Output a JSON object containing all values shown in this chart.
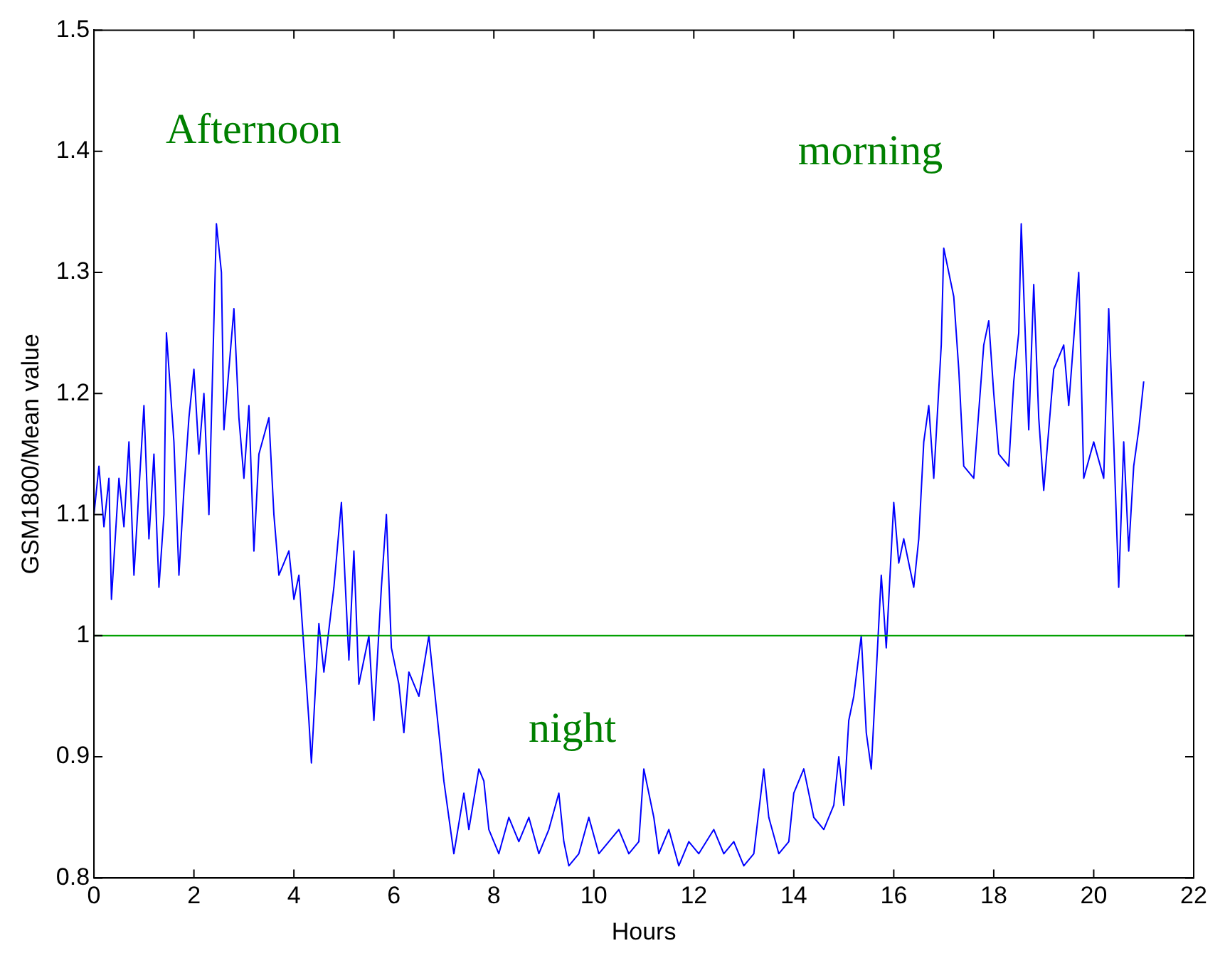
{
  "chart_data": {
    "type": "line",
    "xlabel": "Hours",
    "ylabel": "GSM1800/Mean value",
    "xlim": [
      0,
      22
    ],
    "xticks": [
      0,
      2,
      4,
      6,
      8,
      10,
      12,
      14,
      16,
      18,
      20,
      22
    ],
    "ylim": [
      0.8,
      1.5
    ],
    "yticks": [
      0.8,
      0.9,
      1,
      1.1,
      1.2,
      1.3,
      1.4,
      1.5
    ],
    "grid": false,
    "legend": false,
    "marker": "none",
    "line_style": "solid",
    "ref_lines": [
      {
        "axis": "y",
        "value": 1,
        "color": "#00a000"
      }
    ],
    "annotations": [
      "Afternoon",
      "morning",
      "night"
    ],
    "series": [
      {
        "color": "#0000ff",
        "x": [
          0,
          0.1,
          0.2,
          0.3,
          0.35,
          0.5,
          0.6,
          0.7,
          0.8,
          0.9,
          1.0,
          1.1,
          1.2,
          1.3,
          1.4,
          1.45,
          1.6,
          1.7,
          1.8,
          1.9,
          2.0,
          2.1,
          2.2,
          2.3,
          2.4,
          2.45,
          2.55,
          2.6,
          2.7,
          2.8,
          2.9,
          3.0,
          3.1,
          3.2,
          3.3,
          3.5,
          3.6,
          3.7,
          3.9,
          4.0,
          4.1,
          4.2,
          4.3,
          4.35,
          4.5,
          4.6,
          4.8,
          4.95,
          5.1,
          5.2,
          5.3,
          5.5,
          5.6,
          5.75,
          5.85,
          5.95,
          6.1,
          6.2,
          6.3,
          6.5,
          6.7,
          6.8,
          6.9,
          7.0,
          7.1,
          7.2,
          7.4,
          7.5,
          7.7,
          7.8,
          7.9,
          8.1,
          8.3,
          8.5,
          8.7,
          8.9,
          9.1,
          9.3,
          9.4,
          9.5,
          9.7,
          9.9,
          10.1,
          10.3,
          10.5,
          10.7,
          10.9,
          11.0,
          11.2,
          11.3,
          11.5,
          11.7,
          11.9,
          12.1,
          12.4,
          12.6,
          12.8,
          13.0,
          13.2,
          13.4,
          13.5,
          13.7,
          13.9,
          14.0,
          14.2,
          14.4,
          14.6,
          14.8,
          14.9,
          15.0,
          15.1,
          15.2,
          15.35,
          15.45,
          15.55,
          15.65,
          15.75,
          15.85,
          16.0,
          16.1,
          16.2,
          16.4,
          16.5,
          16.6,
          16.7,
          16.8,
          16.95,
          17.0,
          17.2,
          17.3,
          17.4,
          17.6,
          17.8,
          17.9,
          18.0,
          18.1,
          18.3,
          18.4,
          18.5,
          18.55,
          18.7,
          18.8,
          18.9,
          19.0,
          19.2,
          19.4,
          19.5,
          19.7,
          19.8,
          20.0,
          20.2,
          20.3,
          20.4,
          20.5,
          20.6,
          20.7,
          20.8,
          20.9,
          21.0
        ],
        "values": [
          1.1,
          1.14,
          1.09,
          1.13,
          1.03,
          1.13,
          1.09,
          1.16,
          1.05,
          1.12,
          1.19,
          1.08,
          1.15,
          1.04,
          1.1,
          1.25,
          1.16,
          1.05,
          1.12,
          1.18,
          1.22,
          1.15,
          1.2,
          1.1,
          1.26,
          1.34,
          1.3,
          1.17,
          1.22,
          1.27,
          1.18,
          1.13,
          1.19,
          1.07,
          1.15,
          1.18,
          1.1,
          1.05,
          1.07,
          1.03,
          1.05,
          0.99,
          0.93,
          0.895,
          1.01,
          0.97,
          1.04,
          1.11,
          0.98,
          1.07,
          0.96,
          1.0,
          0.93,
          1.04,
          1.1,
          0.99,
          0.96,
          0.92,
          0.97,
          0.95,
          1.0,
          0.96,
          0.92,
          0.88,
          0.85,
          0.82,
          0.87,
          0.84,
          0.89,
          0.88,
          0.84,
          0.82,
          0.85,
          0.83,
          0.85,
          0.82,
          0.84,
          0.87,
          0.83,
          0.81,
          0.82,
          0.85,
          0.82,
          0.83,
          0.84,
          0.82,
          0.83,
          0.89,
          0.85,
          0.82,
          0.84,
          0.81,
          0.83,
          0.82,
          0.84,
          0.82,
          0.83,
          0.81,
          0.82,
          0.89,
          0.85,
          0.82,
          0.83,
          0.87,
          0.89,
          0.85,
          0.84,
          0.86,
          0.9,
          0.86,
          0.93,
          0.95,
          1.0,
          0.92,
          0.89,
          0.97,
          1.05,
          0.99,
          1.11,
          1.06,
          1.08,
          1.04,
          1.08,
          1.16,
          1.19,
          1.13,
          1.24,
          1.32,
          1.28,
          1.22,
          1.14,
          1.13,
          1.24,
          1.26,
          1.2,
          1.15,
          1.14,
          1.21,
          1.25,
          1.34,
          1.17,
          1.29,
          1.18,
          1.12,
          1.22,
          1.24,
          1.19,
          1.3,
          1.13,
          1.16,
          1.13,
          1.27,
          1.16,
          1.04,
          1.16,
          1.07,
          1.14,
          1.17,
          1.21
        ]
      }
    ]
  }
}
